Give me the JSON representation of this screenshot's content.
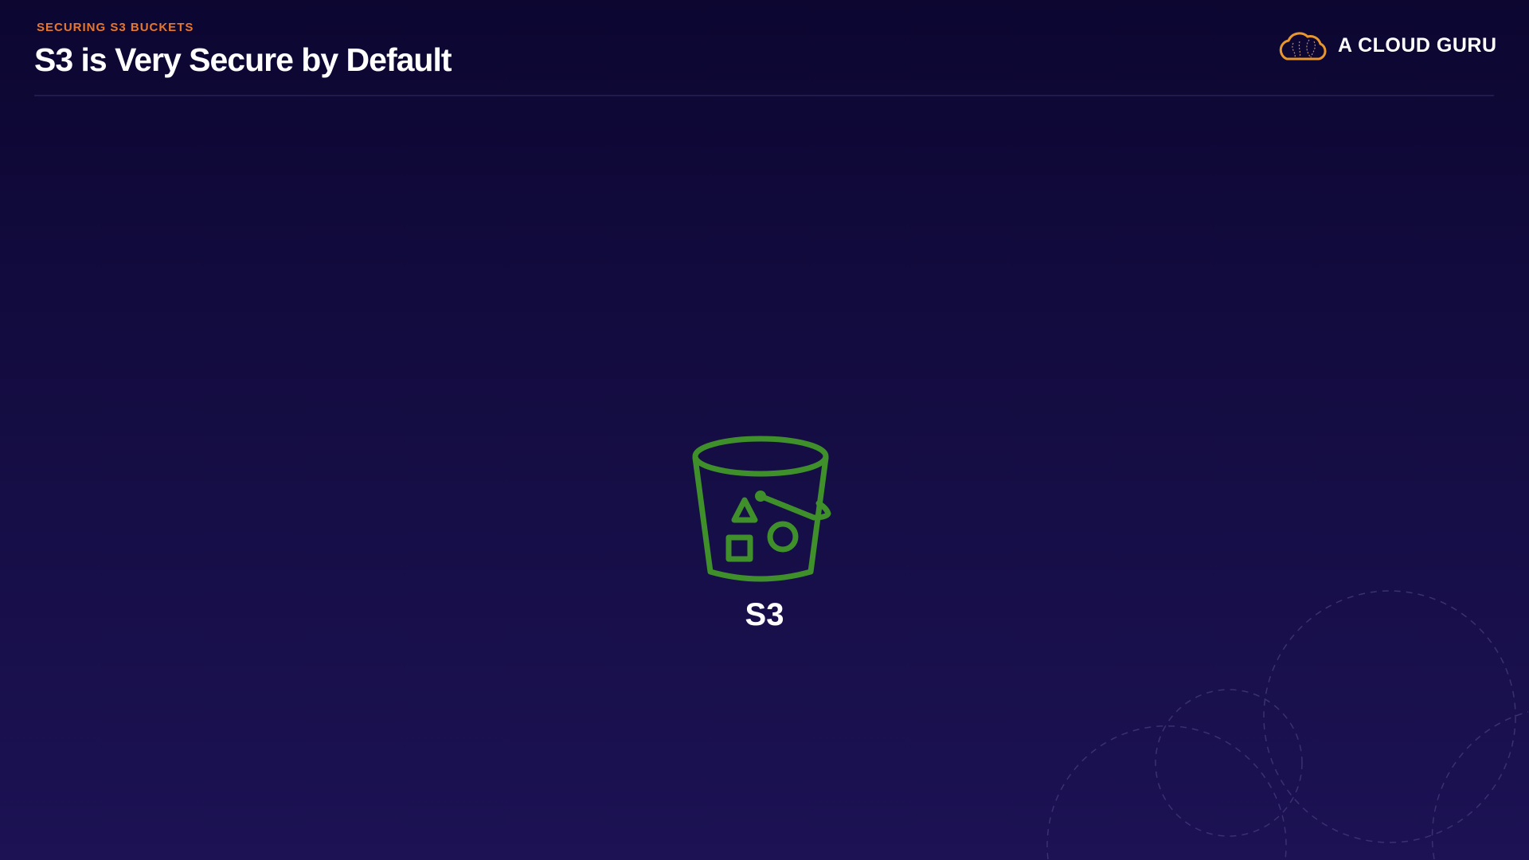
{
  "header": {
    "eyebrow": "SECURING S3 BUCKETS",
    "title": "S3 is Very Secure by Default"
  },
  "brand": {
    "name": "A CLOUD GURU",
    "icon": "cloud-logo-icon",
    "color": "#e8962e"
  },
  "main": {
    "service_icon": "s3-bucket-icon",
    "service_label": "S3",
    "icon_color": "#3f8f2a"
  },
  "colors": {
    "accent": "#e8772e",
    "background": "#130c40"
  }
}
